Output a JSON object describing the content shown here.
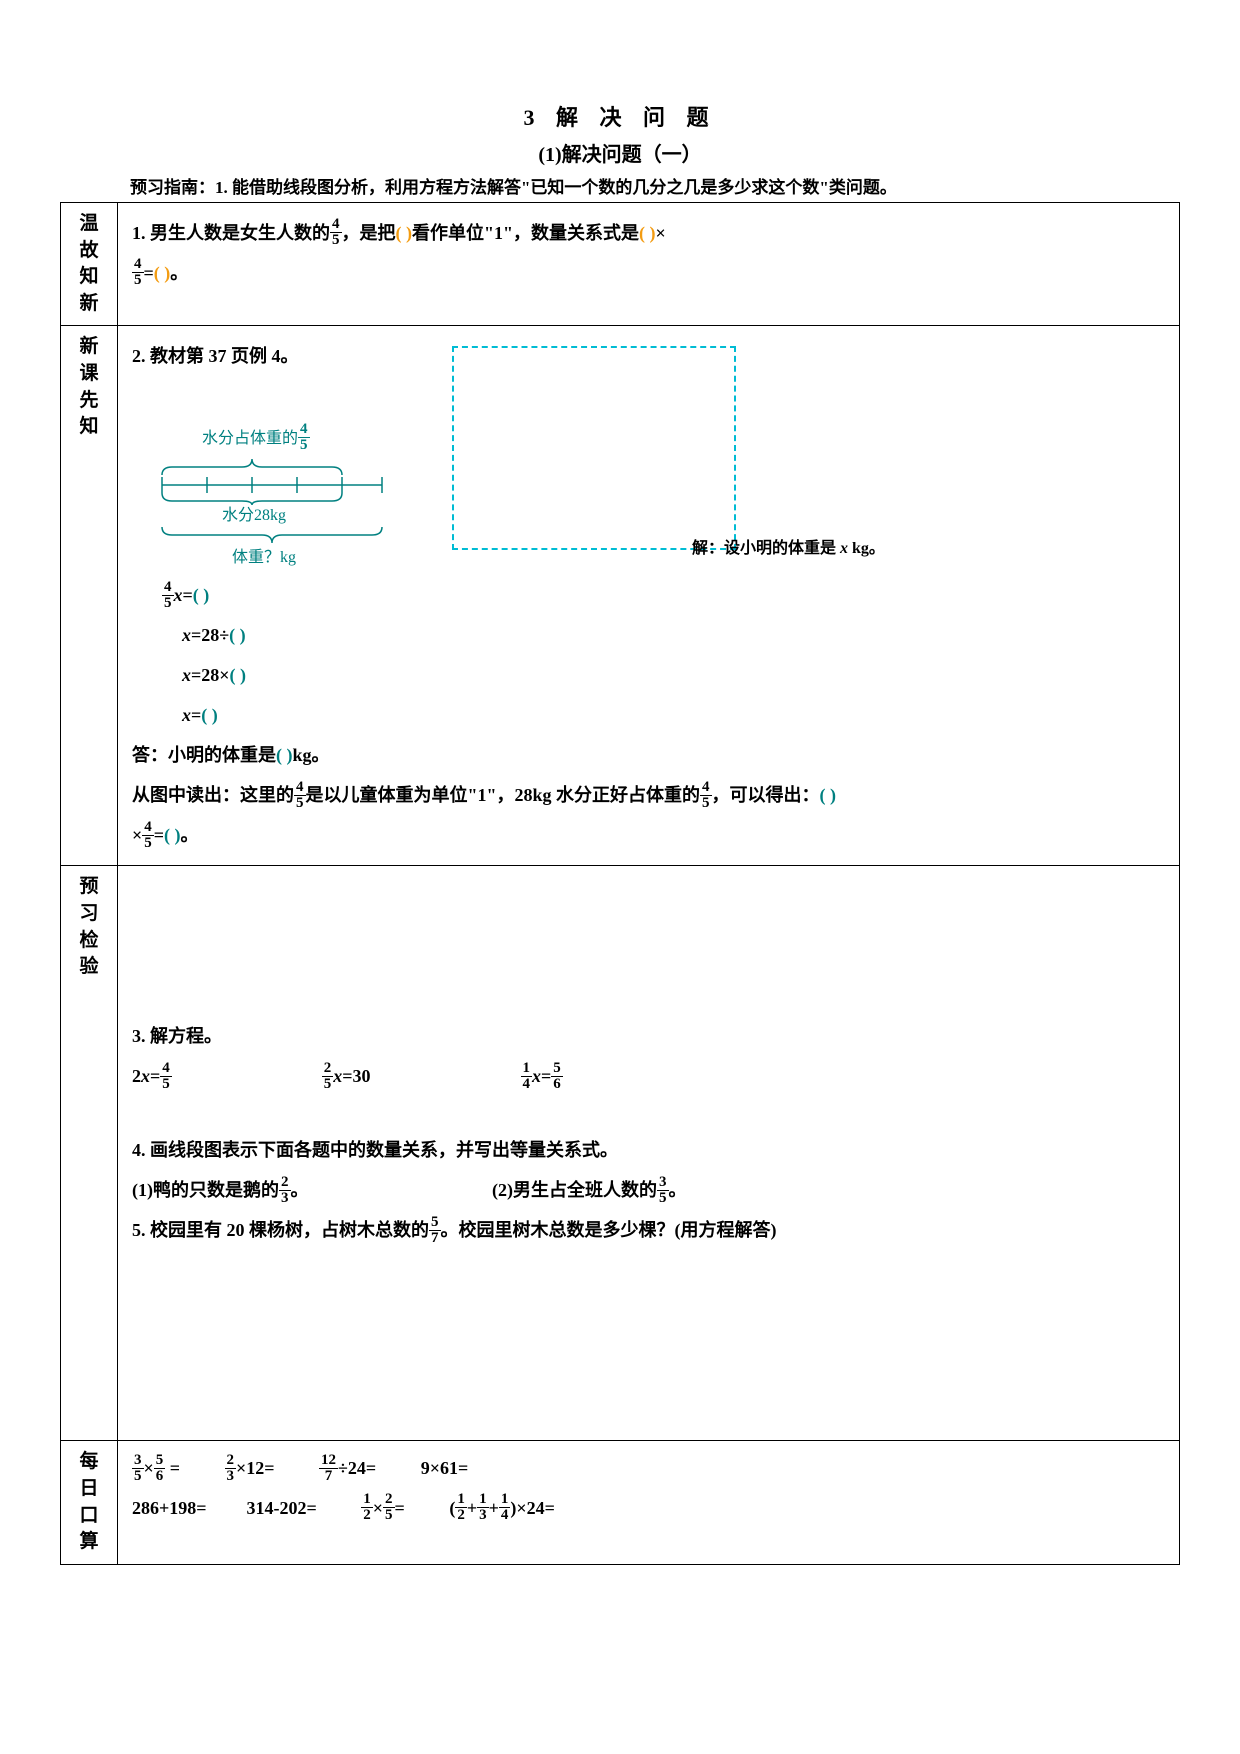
{
  "title": {
    "main": "3  解 决 问 题",
    "sub": "(1)解决问题（一）"
  },
  "guide": "预习指南：1. 能借助线段图分析，利用方程方法解答\"已知一个数的几分之几是多少求这个数\"类问题。",
  "sections": {
    "s1": {
      "label": "温故知新",
      "q1a": "1. 男生人数是女生人数的",
      "q1b": "，是把",
      "q1c": "看作单位\"1\"，数量关系式是",
      "q1d": "×",
      "q1e": "=",
      "q1f": "。",
      "blank1": "(                        )",
      "blank2": "(                          )",
      "blank3": "(                    )",
      "frac": {
        "num": "4",
        "den": "5"
      }
    },
    "s2": {
      "label": "新课先知",
      "heading": "2. 教材第 37 页例 4。",
      "diag": {
        "top_label": "水分占体重的",
        "top_frac": {
          "num": "4",
          "den": "5"
        },
        "water": "水分28kg",
        "weight": "体重？kg",
        "color": "#008080"
      },
      "annotation_pre": "解：设小明的体重是 ",
      "annotation_var": "x",
      "annotation_post": " kg。",
      "eq1_var": "x",
      "eq1_a": "=",
      "eq2_a": "=28÷",
      "eq3_a": "=28×",
      "eq4_a": "=",
      "paren": "(        )",
      "answer": "答：小明的体重是",
      "answer_b": "kg。",
      "read_a": "从图中读出：这里的",
      "read_b": "是以儿童体重为单位\"1\"，28kg 水分正好占体重的",
      "read_c": "，可以得出：",
      "read_d": "×",
      "read_e": "=",
      "read_f": "。",
      "paren_big": "(                  )",
      "paren_sm": "(        )",
      "frac": {
        "num": "4",
        "den": "5"
      }
    },
    "s3": {
      "label": "预习检验",
      "q3": "3. 解方程。",
      "eq3a_pre": "2",
      "eq3a_var": "x",
      "eq3a_post": "=",
      "eq3a_frac": {
        "num": "4",
        "den": "5"
      },
      "eq3b_frac": {
        "num": "2",
        "den": "5"
      },
      "eq3b_var": "x",
      "eq3b_post": "=30",
      "eq3c_frac1": {
        "num": "1",
        "den": "4"
      },
      "eq3c_var": "x",
      "eq3c_mid": "=",
      "eq3c_frac2": {
        "num": "5",
        "den": "6"
      },
      "q4": "4. 画线段图表示下面各题中的数量关系，并写出等量关系式。",
      "q4a_pre": "(1)鸭的只数是鹅的",
      "q4a_post": "。",
      "q4a_frac": {
        "num": "2",
        "den": "3"
      },
      "q4b_pre": "(2)男生占全班人数的",
      "q4b_post": "。",
      "q4b_frac": {
        "num": "3",
        "den": "5"
      },
      "q5_pre": "5. 校园里有 20 棵杨树，占树木总数的",
      "q5_post": "。校园里树木总数是多少棵？(用方程解答)",
      "q5_frac": {
        "num": "5",
        "den": "7"
      }
    },
    "s4": {
      "label1": "每日",
      "label2": "口算",
      "r1a_frac1": {
        "num": "3",
        "den": "5"
      },
      "r1a_mid": "×",
      "r1a_frac2": {
        "num": "5",
        "den": "6"
      },
      "r1a_post": " =",
      "r1b_frac": {
        "num": "2",
        "den": "3"
      },
      "r1b_post": "×12=",
      "r1c_frac": {
        "num": "12",
        "den": "7"
      },
      "r1c_post": "÷24=",
      "r1d": "9×61=",
      "r2a": "286+198=",
      "r2b": "314-202=",
      "r2c_frac1": {
        "num": "1",
        "den": "2"
      },
      "r2c_mid": "×",
      "r2c_frac2": {
        "num": "2",
        "den": "5"
      },
      "r2c_post": "=",
      "r2d_pre": "(",
      "r2d_f1": {
        "num": "1",
        "den": "2"
      },
      "r2d_p": "+",
      "r2d_f2": {
        "num": "1",
        "den": "3"
      },
      "r2d_f3": {
        "num": "1",
        "den": "4"
      },
      "r2d_post": ")×24="
    }
  }
}
